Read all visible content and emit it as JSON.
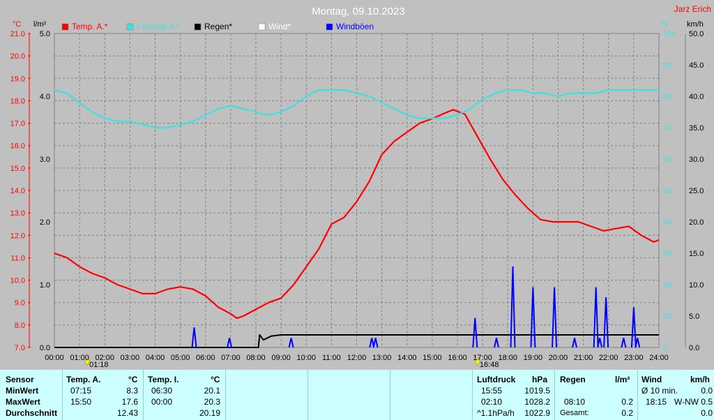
{
  "title": "Montag, 09.10.2023",
  "author": "Jarz Erich",
  "units": {
    "temp": "°C",
    "rain": "l/m²",
    "humidity": "%",
    "wind": "km/h"
  },
  "legend": [
    {
      "label": "Temp. A.*",
      "color": "#ff0000"
    },
    {
      "label": "Feuchte A.*",
      "color": "#40e0e0"
    },
    {
      "label": "Regen*",
      "color": "#000000"
    },
    {
      "label": "Wind*",
      "color": "#ffffff"
    },
    {
      "label": "Windböen",
      "color": "#0000ff"
    }
  ],
  "markers": [
    {
      "label": "01:18"
    },
    {
      "label": "16:48"
    }
  ],
  "chart_data": {
    "type": "line",
    "title": "Montag, 09.10.2023",
    "x_ticks": [
      "00:00",
      "01:00",
      "02:00",
      "03:00",
      "04:00",
      "05:00",
      "06:00",
      "07:00",
      "08:00",
      "09:00",
      "10:00",
      "11:00",
      "12:00",
      "13:00",
      "14:00",
      "15:00",
      "16:00",
      "17:00",
      "18:00",
      "19:00",
      "20:00",
      "21:00",
      "22:00",
      "23:00",
      "24:00"
    ],
    "axes": {
      "temp": {
        "unit": "°C",
        "range": [
          7,
          21
        ],
        "ticks": [
          "21.0",
          "20.0",
          "19.0",
          "18.0",
          "17.0",
          "16.0",
          "15.0",
          "14.0",
          "13.0",
          "12.0",
          "11.0",
          "10.0",
          "9.0",
          "8.0",
          "7.0"
        ]
      },
      "rain": {
        "unit": "l/m²",
        "range": [
          0,
          5
        ],
        "ticks": [
          "5.0",
          "4.0",
          "3.0",
          "2.0",
          "1.0",
          "0.0"
        ]
      },
      "humidity": {
        "unit": "%",
        "range": [
          0,
          100
        ],
        "ticks": [
          "100",
          "90",
          "80",
          "70",
          "60",
          "50",
          "40",
          "30",
          "20",
          "10",
          "0"
        ]
      },
      "wind": {
        "unit": "km/h",
        "range": [
          0,
          50
        ],
        "ticks": [
          "50.0",
          "45.0",
          "40.0",
          "35.0",
          "30.0",
          "25.0",
          "20.0",
          "15.0",
          "10.0",
          "5.0",
          "0.0"
        ]
      }
    },
    "series": [
      {
        "name": "Temp. A.*",
        "axis": "temp",
        "color": "#ff0000",
        "points": [
          [
            0,
            11.2
          ],
          [
            0.5,
            11.0
          ],
          [
            1,
            10.6
          ],
          [
            1.5,
            10.3
          ],
          [
            2,
            10.1
          ],
          [
            2.5,
            9.8
          ],
          [
            3,
            9.6
          ],
          [
            3.5,
            9.4
          ],
          [
            4,
            9.4
          ],
          [
            4.5,
            9.6
          ],
          [
            5,
            9.7
          ],
          [
            5.5,
            9.6
          ],
          [
            6,
            9.3
          ],
          [
            6.5,
            8.8
          ],
          [
            7,
            8.5
          ],
          [
            7.25,
            8.3
          ],
          [
            7.5,
            8.4
          ],
          [
            8,
            8.7
          ],
          [
            8.5,
            9.0
          ],
          [
            9,
            9.2
          ],
          [
            9.5,
            9.8
          ],
          [
            10,
            10.6
          ],
          [
            10.5,
            11.4
          ],
          [
            11,
            12.5
          ],
          [
            11.5,
            12.8
          ],
          [
            12,
            13.5
          ],
          [
            12.5,
            14.4
          ],
          [
            13,
            15.6
          ],
          [
            13.5,
            16.2
          ],
          [
            14,
            16.6
          ],
          [
            14.5,
            17.0
          ],
          [
            15,
            17.2
          ],
          [
            15.5,
            17.45
          ],
          [
            15.83,
            17.6
          ],
          [
            16.3,
            17.4
          ],
          [
            16.8,
            16.4
          ],
          [
            17.3,
            15.4
          ],
          [
            17.8,
            14.5
          ],
          [
            18.3,
            13.8
          ],
          [
            18.8,
            13.2
          ],
          [
            19.3,
            12.7
          ],
          [
            19.8,
            12.6
          ],
          [
            20.3,
            12.6
          ],
          [
            20.8,
            12.6
          ],
          [
            21.3,
            12.4
          ],
          [
            21.8,
            12.2
          ],
          [
            22.3,
            12.3
          ],
          [
            22.8,
            12.4
          ],
          [
            23.3,
            12.0
          ],
          [
            23.8,
            11.7
          ],
          [
            24,
            11.8
          ]
        ]
      },
      {
        "name": "Feuchte A.*",
        "axis": "humidity",
        "color": "#40e0e0",
        "points": [
          [
            0,
            82
          ],
          [
            0.5,
            81
          ],
          [
            1,
            78
          ],
          [
            1.5,
            75
          ],
          [
            2,
            73
          ],
          [
            2.5,
            72
          ],
          [
            3,
            72
          ],
          [
            3.5,
            71
          ],
          [
            4,
            70
          ],
          [
            4.5,
            70
          ],
          [
            5,
            71
          ],
          [
            5.5,
            72
          ],
          [
            6,
            74
          ],
          [
            6.5,
            76
          ],
          [
            7,
            77
          ],
          [
            7.5,
            76
          ],
          [
            8,
            75
          ],
          [
            8.5,
            74
          ],
          [
            9,
            75
          ],
          [
            9.5,
            77
          ],
          [
            10,
            80
          ],
          [
            10.5,
            82
          ],
          [
            11,
            82
          ],
          [
            11.5,
            82
          ],
          [
            12,
            81
          ],
          [
            12.5,
            80
          ],
          [
            13,
            78
          ],
          [
            13.5,
            76
          ],
          [
            14,
            74
          ],
          [
            14.5,
            73
          ],
          [
            15,
            73
          ],
          [
            15.5,
            73
          ],
          [
            16,
            74
          ],
          [
            16.5,
            76
          ],
          [
            17,
            79
          ],
          [
            17.5,
            81
          ],
          [
            18,
            82
          ],
          [
            18.5,
            82
          ],
          [
            19,
            81
          ],
          [
            19.5,
            81
          ],
          [
            20,
            80
          ],
          [
            20.5,
            81
          ],
          [
            21,
            81
          ],
          [
            21.5,
            81
          ],
          [
            22,
            82
          ],
          [
            22.5,
            82
          ],
          [
            23,
            82
          ],
          [
            23.5,
            82
          ],
          [
            24,
            82
          ]
        ]
      },
      {
        "name": "Regen*",
        "axis": "rain",
        "color": "#000000",
        "points": [
          [
            0,
            0
          ],
          [
            8.1,
            0
          ],
          [
            8.15,
            0.2
          ],
          [
            8.3,
            0.12
          ],
          [
            8.6,
            0.18
          ],
          [
            9,
            0.2
          ],
          [
            10,
            0.2
          ],
          [
            24,
            0.2
          ]
        ]
      },
      {
        "name": "Windböen",
        "axis": "wind",
        "color": "#0000ff",
        "peaks": [
          [
            5.55,
            3.2
          ],
          [
            6.95,
            1.5
          ],
          [
            9.4,
            1.5
          ],
          [
            12.6,
            1.5
          ],
          [
            12.75,
            1.5
          ],
          [
            16.7,
            4.7
          ],
          [
            17.55,
            1.5
          ],
          [
            18.2,
            12.9
          ],
          [
            19.0,
            9.6
          ],
          [
            19.85,
            9.6
          ],
          [
            20.65,
            1.5
          ],
          [
            21.5,
            9.6
          ],
          [
            21.65,
            1.5
          ],
          [
            21.9,
            8.0
          ],
          [
            22.6,
            1.5
          ],
          [
            23.0,
            6.4
          ],
          [
            23.15,
            1.5
          ]
        ]
      }
    ]
  },
  "table": {
    "sensor": {
      "header": "Sensor",
      "rows": [
        "MinWert",
        "MaxWert",
        "Durchschnitt"
      ]
    },
    "temp_a": {
      "header": "Temp. A.",
      "unit": "°C",
      "min_time": "07:15",
      "min": "8.3",
      "max_time": "15:50",
      "max": "17.6",
      "avg": "12.43"
    },
    "temp_i": {
      "header": "Temp. I.",
      "unit": "°C",
      "min_time": "06:30",
      "min": "20.1",
      "max_time": "00:00",
      "max": "20.3",
      "avg": "20.19"
    },
    "pressure": {
      "header": "Luftdruck",
      "unit": "hPa",
      "min_time": "15:55",
      "min": "1019.5",
      "max_time": "02:10",
      "max": "1028.2",
      "trend": "^1.1hPa/h",
      "current": "1022.9"
    },
    "rain": {
      "header": "Regen",
      "unit": "l/m²",
      "max_time": "08:10",
      "max": "0.2",
      "total_label": "Gesamt:",
      "total": "0.2"
    },
    "wind": {
      "header": "Wind",
      "unit": "km/h",
      "avg_label": "Ø 10 min.",
      "avg": "0.0",
      "max_time": "18:15",
      "max": "W-NW 0.5",
      "last": "0.0"
    }
  }
}
